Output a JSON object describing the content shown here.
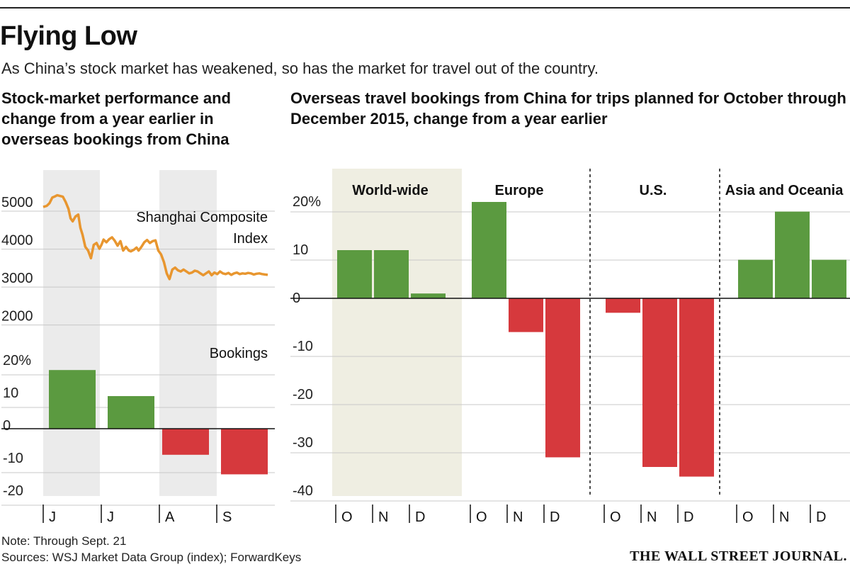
{
  "title": "Flying Low",
  "subtitle": "As China’s stock market has weakened, so has the market for travel out of the country.",
  "left_heading": "Stock-market performance and change from a year earlier in overseas bookings from China",
  "right_heading": "Overseas travel bookings from China for trips planned for October through December 2015, change from a year earlier",
  "note": "Note: Through Sept. 21",
  "sources": "Sources: WSJ Market Data Group (index); ForwardKeys",
  "brand": "THE WALL STREET JOURNAL.",
  "colors": {
    "positive": "#5b9a40",
    "negative": "#d6393d",
    "line": "#e8962f",
    "shade": "#ebebeb",
    "shade_warm": "#efeee2",
    "grid": "#c8c8c8"
  },
  "chart_data": [
    {
      "type": "line",
      "title": "Shanghai Composite Index",
      "label_line1": "Shanghai Composite",
      "label_line2": "Index",
      "yticks": [
        "5000",
        "4000",
        "3000",
        "2000"
      ],
      "ylim": [
        1900,
        5300
      ],
      "x": [
        0,
        0.5,
        0.9,
        1.3,
        1.7,
        2.0,
        2.4,
        2.8,
        3.2,
        3.6,
        3.9,
        4.2,
        4.6,
        5.0,
        5.3,
        5.6,
        6.0,
        6.4,
        6.8,
        7.2,
        7.6,
        8.0,
        8.3,
        8.6,
        9.0,
        9.4,
        9.8,
        10.2,
        10.6,
        11.0,
        11.4,
        11.8,
        12.2,
        12.5,
        12.9,
        13.3,
        13.6,
        14.0,
        14.4,
        14.8,
        15.2,
        15.6,
        16.0,
        16.4,
        16.8,
        17.2,
        17.6,
        18.0,
        18.4,
        18.8,
        19.2,
        19.6,
        20.0,
        20.4,
        20.8,
        21.2,
        21.6,
        22.0,
        22.4,
        22.8,
        23.2,
        23.6,
        24.0,
        24.4,
        24.8,
        25.2,
        25.6,
        26.0,
        26.4,
        26.8,
        27.2,
        27.6,
        28.0,
        28.4,
        28.8,
        29.2,
        29.6,
        30.0,
        30.4,
        30.8,
        31.2,
        31.6,
        32.0
      ],
      "values": [
        4850,
        4880,
        4950,
        5100,
        5130,
        5160,
        5140,
        5120,
        4980,
        4800,
        4550,
        4470,
        4600,
        4650,
        4300,
        4120,
        3800,
        3700,
        3500,
        3850,
        3900,
        3750,
        3850,
        3990,
        3920,
        4000,
        4050,
        3960,
        3830,
        3950,
        3700,
        3800,
        3700,
        3680,
        3720,
        3780,
        3700,
        3800,
        3920,
        3980,
        3900,
        3950,
        3970,
        3700,
        3600,
        3400,
        3100,
        2950,
        3200,
        3250,
        3180,
        3150,
        3200,
        3150,
        3100,
        3120,
        3170,
        3150,
        3100,
        3050,
        3100,
        3150,
        3050,
        3120,
        3080,
        3150,
        3100,
        3080,
        3110,
        3060,
        3100,
        3120,
        3080,
        3100,
        3090,
        3110,
        3100,
        3070,
        3090,
        3100,
        3080,
        3070,
        3060
      ]
    },
    {
      "type": "bar",
      "title": "Bookings",
      "categories": [
        "J",
        "J",
        "A",
        "S"
      ],
      "values": [
        18,
        10,
        -8,
        -14
      ],
      "yticks": [
        "20%",
        "10",
        "0",
        "-10",
        "-20"
      ],
      "ylim": [
        -25,
        25
      ]
    },
    {
      "type": "bar",
      "title": "Overseas travel bookings from China, Oct–Dec 2015, change from a year earlier",
      "yticks": [
        "20%",
        "10",
        "0",
        "-10",
        "-20",
        "-30",
        "-40"
      ],
      "ylim": [
        -42,
        24
      ],
      "groups": [
        {
          "name": "World-wide",
          "categories": [
            "O",
            "N",
            "D"
          ],
          "values": [
            10,
            10,
            1
          ]
        },
        {
          "name": "Europe",
          "categories": [
            "O",
            "N",
            "D"
          ],
          "values": [
            20,
            -7,
            -33
          ]
        },
        {
          "name": "U.S.",
          "categories": [
            "O",
            "N",
            "D"
          ],
          "values": [
            -3,
            -35,
            -37
          ]
        },
        {
          "name": "Asia and Oceania",
          "categories": [
            "O",
            "N",
            "D"
          ],
          "values": [
            8,
            18,
            8
          ]
        }
      ]
    }
  ]
}
